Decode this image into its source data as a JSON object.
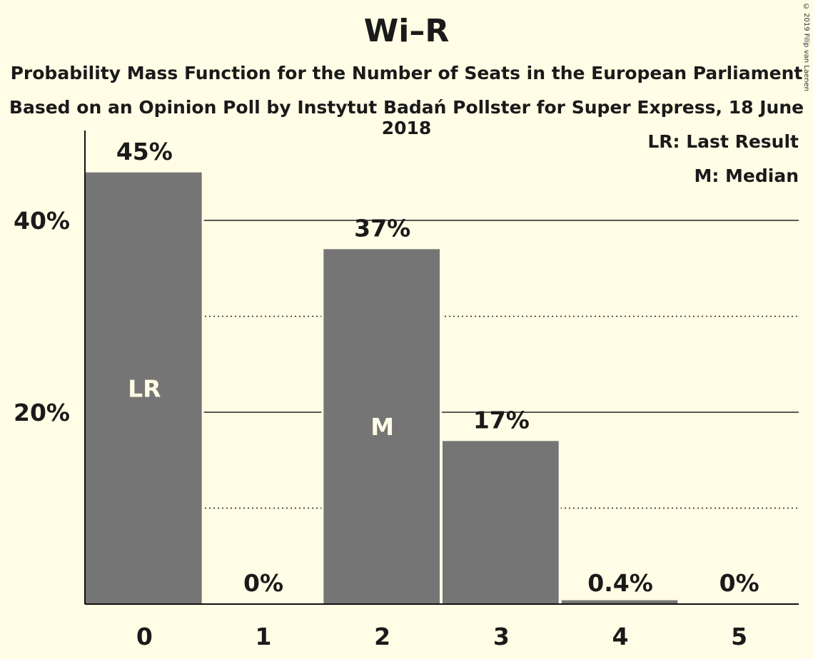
{
  "header": {
    "title": "Wi–R",
    "subtitle_line1": "Probability Mass Function for the Number of Seats in the European Parliament",
    "subtitle_line2": "Based on an Opinion Poll by Instytut Badań Pollster for Super Express, 18 June 2018",
    "copyright": "© 2019 Filip van Laenen"
  },
  "legend": {
    "last_result": "LR: Last Result",
    "median": "M: Median"
  },
  "colors": {
    "background": "#FFFDE5",
    "bar": "#757575",
    "bar_label": "#FFFDE5",
    "text": "#1a1a1a"
  },
  "chart_data": {
    "type": "bar",
    "categories": [
      "0",
      "1",
      "2",
      "3",
      "4",
      "5"
    ],
    "values": [
      45,
      0,
      37,
      17,
      0.4,
      0
    ],
    "value_labels": [
      "45%",
      "0%",
      "37%",
      "17%",
      "0.4%",
      "0%"
    ],
    "bar_markers": [
      "LR",
      "",
      "M",
      "",
      "",
      ""
    ],
    "ylim": [
      0,
      49
    ],
    "y_ticks": [
      {
        "value": 20,
        "label": "20%"
      },
      {
        "value": 40,
        "label": "40%"
      }
    ],
    "y_minor_gridlines": [
      10,
      30
    ],
    "xlabel": "",
    "ylabel": "",
    "grid": true,
    "legend_position": "top-right"
  }
}
